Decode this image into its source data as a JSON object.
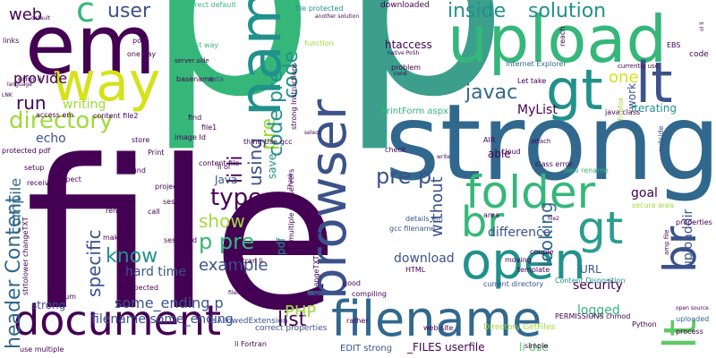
{
  "palette": {
    "background": "#ffffff",
    "dark_purple": "#440154",
    "indigo": "#3b528b",
    "steel_blue": "#31688e",
    "teal": "#21918c",
    "sea_green": "#2a9d8f",
    "green": "#35b779",
    "light_green": "#5ec962",
    "yellow_green": "#a0da39",
    "yellow": "#d5e21a"
  },
  "words": [
    {
      "text": "p",
      "color": "#35b779"
    },
    {
      "text": "p",
      "color": "#3b9f8b"
    },
    {
      "text": "file",
      "color": "#440154"
    },
    {
      "text": "strong",
      "color": "#31688e"
    },
    {
      "text": "em",
      "color": "#440154"
    },
    {
      "text": "way",
      "color": "#d5e21a"
    },
    {
      "text": "upload",
      "color": "#35b779"
    },
    {
      "text": "name",
      "color": "#21918c"
    },
    {
      "text": "browser",
      "color": "#3b528b"
    },
    {
      "text": "gt",
      "color": "#21918c"
    },
    {
      "text": "lt",
      "color": "#3b528b"
    },
    {
      "text": "document",
      "color": "#440154"
    },
    {
      "text": "filename",
      "color": "#31688e"
    },
    {
      "text": "open",
      "color": "#21918c"
    },
    {
      "text": "folder",
      "color": "#35b779"
    },
    {
      "text": "br",
      "color": "#35b779"
    },
    {
      "text": "gt",
      "color": "#2a9d8f"
    },
    {
      "text": "lt",
      "color": "#5ec962"
    },
    {
      "text": "br",
      "color": "#3b528b"
    },
    {
      "text": "directory",
      "color": "#a0da39"
    },
    {
      "text": "header Content",
      "color": "#31688e"
    },
    {
      "text": "pre",
      "color": "#a0da39"
    },
    {
      "text": "code",
      "color": "#21918c"
    },
    {
      "text": "code pre",
      "color": "#21918c"
    },
    {
      "text": "inside",
      "color": "#21918c"
    },
    {
      "text": "solution",
      "color": "#21918c"
    },
    {
      "text": "javac",
      "color": "#31688e"
    },
    {
      "text": "one",
      "color": "#d5e21a"
    },
    {
      "text": "using",
      "color": "#3b528b"
    },
    {
      "text": "li li",
      "color": "#440154"
    },
    {
      "text": "pre p",
      "color": "#3b528b"
    },
    {
      "text": "type",
      "color": "#440154"
    },
    {
      "text": "p pre",
      "color": "#35b779"
    },
    {
      "text": "show",
      "color": "#a0da39"
    },
    {
      "text": "know",
      "color": "#21918c"
    },
    {
      "text": "example",
      "color": "#3b528b"
    },
    {
      "text": "specific",
      "color": "#3b528b"
    },
    {
      "text": "looking",
      "color": "#31688e"
    },
    {
      "text": "without",
      "color": "#3b528b"
    },
    {
      "text": "list",
      "color": "#440154"
    },
    {
      "text": "PHP",
      "color": "#a0da39"
    },
    {
      "text": "some_ending p",
      "color": "#3b528b"
    },
    {
      "text": "hard time",
      "color": "#3b528b"
    },
    {
      "text": "difference",
      "color": "#3b528b"
    },
    {
      "text": "compile",
      "color": "#31688e"
    },
    {
      "text": "run",
      "color": "#440154"
    },
    {
      "text": "web",
      "color": "#440154"
    },
    {
      "text": "user",
      "color": "#3b528b"
    },
    {
      "text": "c",
      "color": "#35b779"
    },
    {
      "text": "provide",
      "color": "#440154"
    },
    {
      "text": "writing",
      "color": "#a0da39"
    },
    {
      "text": "echo",
      "color": "#3b528b"
    },
    {
      "text": "download",
      "color": "#3b528b"
    },
    {
      "text": "security",
      "color": "#440154"
    },
    {
      "text": "logged",
      "color": "#35b779"
    },
    {
      "text": "goal",
      "color": "#440154"
    },
    {
      "text": "filename some_ending",
      "color": "#3b528b"
    },
    {
      "text": "strong",
      "color": "#3b528b"
    },
    {
      "text": "work",
      "color": "#3b528b"
    },
    {
      "text": "iterating",
      "color": "#21918c"
    },
    {
      "text": "uploaddir",
      "color": "#3b528b"
    },
    {
      "text": "MyList",
      "color": "#440154"
    },
    {
      "text": "htaccess",
      "color": "#440154"
    },
    {
      "text": "Java",
      "color": "#3b528b"
    },
    {
      "text": "save",
      "color": "#21918c"
    },
    {
      "text": "pdf",
      "color": "#21918c"
    },
    {
      "text": "able",
      "color": "#440154"
    },
    {
      "text": "URL",
      "color": "#3b528b"
    },
    {
      "text": "li Use",
      "color": "#5ec962"
    },
    {
      "text": "_FILES userfile",
      "color": "#440154"
    },
    {
      "text": "EDIT strong",
      "color": "#3b528b"
    },
    {
      "text": "PrintForm aspx",
      "color": "#35b779"
    },
    {
      "text": "downloaded",
      "color": "#440154"
    },
    {
      "text": "file protected",
      "color": "#21918c"
    },
    {
      "text": "Internet Explorer",
      "color": "#31688e"
    },
    {
      "text": "Python",
      "color": "#440154"
    },
    {
      "text": "uploaded",
      "color": "#31688e"
    },
    {
      "text": "correct properties",
      "color": "#3b528b"
    },
    {
      "text": "Directory GetFiles",
      "color": "#a0da39"
    },
    {
      "text": "Content Disposition",
      "color": "#21918c"
    },
    {
      "text": "current directory",
      "color": "#3b528b"
    },
    {
      "text": "gcc filename",
      "color": "#3b528b"
    },
    {
      "text": "details em",
      "color": "#3b528b"
    },
    {
      "text": "isAllowedExtension",
      "color": "#3b528b"
    },
    {
      "text": "web site",
      "color": "#440154"
    },
    {
      "text": "template",
      "color": "#440154"
    },
    {
      "text": "moving",
      "color": "#440154"
    },
    {
      "text": "rather",
      "color": "#440154"
    },
    {
      "text": "check",
      "color": "#440154"
    },
    {
      "text": "good",
      "color": "#440154"
    },
    {
      "text": "HTML",
      "color": "#440154"
    },
    {
      "text": "problem",
      "color": "#440154"
    },
    {
      "text": "compiling",
      "color": "#440154"
    },
    {
      "text": "Let take",
      "color": "#440154"
    },
    {
      "text": "function",
      "color": "#a0da39"
    },
    {
      "text": "correct default",
      "color": "#35b779"
    },
    {
      "text": "data",
      "color": "#3b528b"
    },
    {
      "text": "basename",
      "color": "#440154"
    },
    {
      "text": "easiest way",
      "color": "#35b779"
    },
    {
      "text": "post",
      "color": "#440154"
    },
    {
      "text": "one Say",
      "color": "#440154"
    },
    {
      "text": "access em",
      "color": "#440154"
    },
    {
      "text": "links",
      "color": "#440154"
    },
    {
      "text": "content file2",
      "color": "#440154"
    },
    {
      "text": "protected pdf",
      "color": "#440154"
    },
    {
      "text": "setup",
      "color": "#440154"
    },
    {
      "text": "receive",
      "color": "#440154"
    },
    {
      "text": "suspect",
      "color": "#440154"
    },
    {
      "text": "found",
      "color": "#440154"
    },
    {
      "text": "Print",
      "color": "#440154"
    },
    {
      "text": "store",
      "color": "#440154"
    },
    {
      "text": "image Id",
      "color": "#440154"
    },
    {
      "text": "content file",
      "color": "#440154"
    },
    {
      "text": "li ol",
      "color": "#440154"
    },
    {
      "text": "render",
      "color": "#440154"
    },
    {
      "text": "make",
      "color": "#440154"
    },
    {
      "text": "expected",
      "color": "#440154"
    },
    {
      "text": "sessionId",
      "color": "#440154"
    },
    {
      "text": "sum",
      "color": "#440154"
    },
    {
      "text": "use",
      "color": "#440154"
    },
    {
      "text": "Fortran li",
      "color": "#440154"
    },
    {
      "text": "li Fortran",
      "color": "#440154"
    },
    {
      "text": "session",
      "color": "#440154"
    },
    {
      "text": "call",
      "color": "#440154"
    },
    {
      "text": "project",
      "color": "#440154"
    },
    {
      "text": "thing Use gcc",
      "color": "#440154"
    },
    {
      "text": "multiple webservers",
      "color": "#440154"
    },
    {
      "text": "strong Instructions",
      "color": "#440154"
    },
    {
      "text": "changeTXT changeTXT",
      "color": "#440154"
    },
    {
      "text": "PERMISSIONS chmod",
      "color": "#440154"
    },
    {
      "text": "area",
      "color": "#440154"
    },
    {
      "text": "AIR",
      "color": "#440154"
    },
    {
      "text": "cloud",
      "color": "#440154"
    },
    {
      "text": "class error",
      "color": "#440154"
    },
    {
      "text": "new rename",
      "color": "#35b779"
    },
    {
      "text": "secure area",
      "color": "#a0da39"
    },
    {
      "text": "properties",
      "color": "#440154"
    },
    {
      "text": "outside",
      "color": "#3b528b"
    },
    {
      "text": "java class",
      "color": "#440154"
    },
    {
      "text": "code",
      "color": "#440154"
    },
    {
      "text": "EBS",
      "color": "#440154"
    },
    {
      "text": "reach",
      "color": "#440154"
    },
    {
      "text": "simple",
      "color": "#440154"
    },
    {
      "text": "couple",
      "color": "#440154"
    },
    {
      "text": "process",
      "color": "#440154"
    },
    {
      "text": "open source",
      "color": "#440154"
    },
    {
      "text": "use multiple",
      "color": "#440154"
    },
    {
      "text": "strtolower changeTXT",
      "color": "#440154"
    },
    {
      "text": "Firefox",
      "color": "#a0da39"
    },
    {
      "text": "error li",
      "color": "#440154"
    },
    {
      "text": "file1",
      "color": "#440154"
    },
    {
      "text": "find",
      "color": "#440154"
    },
    {
      "text": "LNK",
      "color": "#440154"
    },
    {
      "text": "language",
      "color": "#440154"
    },
    {
      "text": "currently use",
      "color": "#440154"
    },
    {
      "text": "attach",
      "color": "#440154"
    },
    {
      "text": "server side",
      "color": "#440154"
    },
    {
      "text": "another solution",
      "color": "#440154"
    },
    {
      "text": "select",
      "color": "#440154"
    },
    {
      "text": "write",
      "color": "#440154"
    },
    {
      "text": "native PoSh",
      "color": "#440154"
    },
    {
      "text": "cond",
      "color": "#440154"
    },
    {
      "text": "Thank",
      "color": "#440154"
    },
    {
      "text": "filename",
      "color": "#440154"
    },
    {
      "text": "file2",
      "color": "#440154"
    },
    {
      "text": "amp file",
      "color": "#440154"
    },
    {
      "text": "ol li",
      "color": "#440154"
    },
    {
      "text": "default",
      "color": "#440154"
    }
  ]
}
